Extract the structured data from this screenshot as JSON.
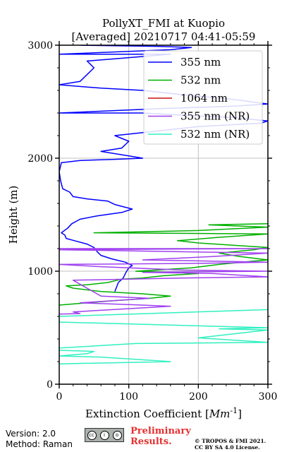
{
  "chart_data": {
    "type": "line",
    "title_line1": "PollyXT_FMI at Kuopio",
    "title_line2": "[Averaged] 20210717 04:41-05:59",
    "xlabel_prefix": "Extinction Coefficient [",
    "xlabel_unit_base": "Mm",
    "xlabel_unit_exp": "-1",
    "xlabel_suffix": "]",
    "ylabel": "Height (m)",
    "xlim": [
      0,
      300
    ],
    "ylim": [
      0,
      3000
    ],
    "xticks": [
      0,
      100,
      200,
      300
    ],
    "yticks": [
      0,
      1000,
      2000,
      3000
    ],
    "grid": true,
    "legend_position": "top-right",
    "series": [
      {
        "name": "355 nm",
        "color": "#0000ff",
        "points": [
          [
            80,
            820
          ],
          [
            85,
            900
          ],
          [
            92,
            940
          ],
          [
            96,
            990
          ],
          [
            100,
            1030
          ],
          [
            105,
            1050
          ],
          [
            95,
            1080
          ],
          [
            75,
            1110
          ],
          [
            60,
            1140
          ],
          [
            55,
            1170
          ],
          [
            50,
            1210
          ],
          [
            40,
            1240
          ],
          [
            22,
            1270
          ],
          [
            10,
            1290
          ],
          [
            8,
            1320
          ],
          [
            3,
            1340
          ],
          [
            12,
            1380
          ],
          [
            18,
            1420
          ],
          [
            30,
            1460
          ],
          [
            55,
            1490
          ],
          [
            90,
            1520
          ],
          [
            105,
            1550
          ],
          [
            80,
            1590
          ],
          [
            70,
            1620
          ],
          [
            40,
            1640
          ],
          [
            20,
            1660
          ],
          [
            15,
            1700
          ],
          [
            5,
            1730
          ],
          [
            2,
            1800
          ],
          [
            0,
            1880
          ],
          [
            3,
            1960
          ],
          [
            30,
            1980
          ],
          [
            80,
            1990
          ],
          [
            120,
            2000
          ],
          [
            100,
            2020
          ],
          [
            60,
            2060
          ],
          [
            90,
            2090
          ],
          [
            100,
            2150
          ],
          [
            80,
            2200
          ],
          [
            140,
            2240
          ],
          [
            200,
            2280
          ],
          [
            290,
            2310
          ],
          [
            300,
            2330
          ],
          [
            250,
            2360
          ],
          [
            180,
            2380
          ],
          [
            120,
            2400
          ],
          [
            0,
            2400
          ],
          [
            150,
            2440
          ],
          [
            250,
            2460
          ],
          [
            300,
            2480
          ],
          [
            250,
            2520
          ],
          [
            180,
            2560
          ],
          [
            120,
            2600
          ],
          [
            60,
            2620
          ],
          [
            0,
            2650
          ],
          [
            30,
            2680
          ],
          [
            40,
            2740
          ],
          [
            50,
            2800
          ],
          [
            40,
            2860
          ],
          [
            80,
            2880
          ],
          [
            120,
            2900
          ],
          [
            160,
            2920
          ],
          [
            0,
            2920
          ],
          [
            160,
            2960
          ],
          [
            190,
            2980
          ],
          [
            140,
            2990
          ],
          [
            30,
            3000
          ]
        ]
      },
      {
        "name": "532 nm",
        "color": "#00b000",
        "points": [
          [
            0,
            700
          ],
          [
            40,
            720
          ],
          [
            80,
            740
          ],
          [
            130,
            760
          ],
          [
            160,
            780
          ],
          [
            120,
            800
          ],
          [
            60,
            820
          ],
          [
            20,
            850
          ],
          [
            10,
            870
          ],
          [
            40,
            880
          ],
          [
            70,
            900
          ],
          [
            90,
            930
          ],
          [
            120,
            940
          ],
          [
            150,
            960
          ],
          [
            200,
            980
          ],
          [
            160,
            990
          ],
          [
            110,
            1000
          ],
          [
            140,
            1010
          ],
          [
            190,
            1030
          ],
          [
            230,
            1060
          ],
          [
            280,
            1090
          ],
          [
            300,
            1100
          ],
          [
            260,
            1130
          ],
          [
            230,
            1160
          ],
          [
            280,
            1190
          ],
          [
            300,
            1210
          ],
          [
            250,
            1230
          ],
          [
            200,
            1250
          ],
          [
            170,
            1270
          ],
          [
            230,
            1300
          ],
          [
            300,
            1330
          ],
          [
            50,
            1340
          ],
          [
            200,
            1360
          ],
          [
            300,
            1390
          ],
          [
            215,
            1410
          ],
          [
            300,
            1420
          ]
        ]
      },
      {
        "name": "1064 nm",
        "color": "#cc1010",
        "points": []
      },
      {
        "name": "355 nm (NR)",
        "color": "#a040f0",
        "points": [
          [
            0,
            620
          ],
          [
            30,
            625
          ],
          [
            20,
            640
          ],
          [
            160,
            690
          ],
          [
            120,
            700
          ],
          [
            30,
            720
          ],
          [
            80,
            740
          ],
          [
            130,
            760
          ],
          [
            60,
            780
          ],
          [
            20,
            920
          ],
          [
            180,
            940
          ],
          [
            300,
            950
          ],
          [
            220,
            980
          ],
          [
            120,
            990
          ],
          [
            300,
            1000
          ],
          [
            180,
            1010
          ],
          [
            60,
            1040
          ],
          [
            0,
            1060
          ],
          [
            210,
            1070
          ],
          [
            300,
            1080
          ],
          [
            120,
            1100
          ],
          [
            220,
            1130
          ],
          [
            300,
            1160
          ],
          [
            0,
            1190
          ],
          [
            300,
            1200
          ],
          [
            0,
            1200
          ]
        ]
      },
      {
        "name": "532 nm (NR)",
        "color": "#30f0c0",
        "points": [
          [
            0,
            180
          ],
          [
            160,
            200
          ],
          [
            60,
            240
          ],
          [
            0,
            250
          ],
          [
            40,
            270
          ],
          [
            50,
            290
          ],
          [
            0,
            300
          ],
          [
            0,
            320
          ],
          [
            110,
            360
          ],
          [
            300,
            370
          ],
          [
            200,
            410
          ],
          [
            300,
            480
          ],
          [
            230,
            490
          ],
          [
            300,
            500
          ],
          [
            0,
            550
          ],
          [
            0,
            600
          ],
          [
            300,
            660
          ]
        ]
      }
    ]
  },
  "footer": {
    "version": "Version: 2.0",
    "method": "Method: Raman",
    "preliminary_line1": "Preliminary",
    "preliminary_line2": "Results.",
    "copyright_line1": "© TROPOS & FMI 2021.",
    "copyright_line2": "CC BY SA 4.0 License."
  }
}
